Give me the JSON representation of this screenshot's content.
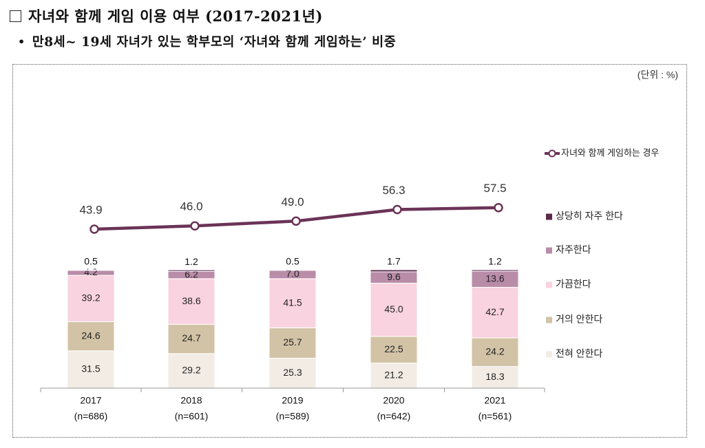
{
  "title": "자녀와 함께 게임 이용 여부 (2017-2021년)",
  "subtitle": "만8세~ 19세 자녀가 있는 학부모의 ‘자녀와 함께 게임하는’ 비중",
  "chart_data": {
    "type": "bar",
    "stacked": true,
    "unit_note": "(단위 : %)",
    "categories": [
      "2017",
      "2018",
      "2019",
      "2020",
      "2021"
    ],
    "sample_sizes": [
      "(n=686)",
      "(n=601)",
      "(n=589)",
      "(n=642)",
      "(n=561)"
    ],
    "series": [
      {
        "name": "전혀 안한다",
        "color": "#f2ece4",
        "values": [
          31.5,
          29.2,
          25.3,
          21.2,
          18.3
        ]
      },
      {
        "name": "거의 안한다",
        "color": "#d3c3a6",
        "values": [
          24.6,
          24.7,
          25.7,
          22.5,
          24.2
        ]
      },
      {
        "name": "가끔한다",
        "color": "#f9d3df",
        "values": [
          39.2,
          38.6,
          41.5,
          45.0,
          42.7
        ]
      },
      {
        "name": "자주한다",
        "color": "#b98ca8",
        "values": [
          4.2,
          6.2,
          7.0,
          9.6,
          13.6
        ]
      },
      {
        "name": "상당히 자주 한다",
        "color": "#5a2a4a",
        "values": [
          0.5,
          1.2,
          0.5,
          1.7,
          1.2
        ]
      }
    ],
    "line_series": {
      "name": "자녀와 함께 게임하는 경우",
      "color": "#6b3357",
      "values": [
        43.9,
        46.0,
        49.0,
        56.3,
        57.5
      ]
    },
    "ylim": [
      0,
      100
    ],
    "legend_position": "right",
    "grid": false
  }
}
